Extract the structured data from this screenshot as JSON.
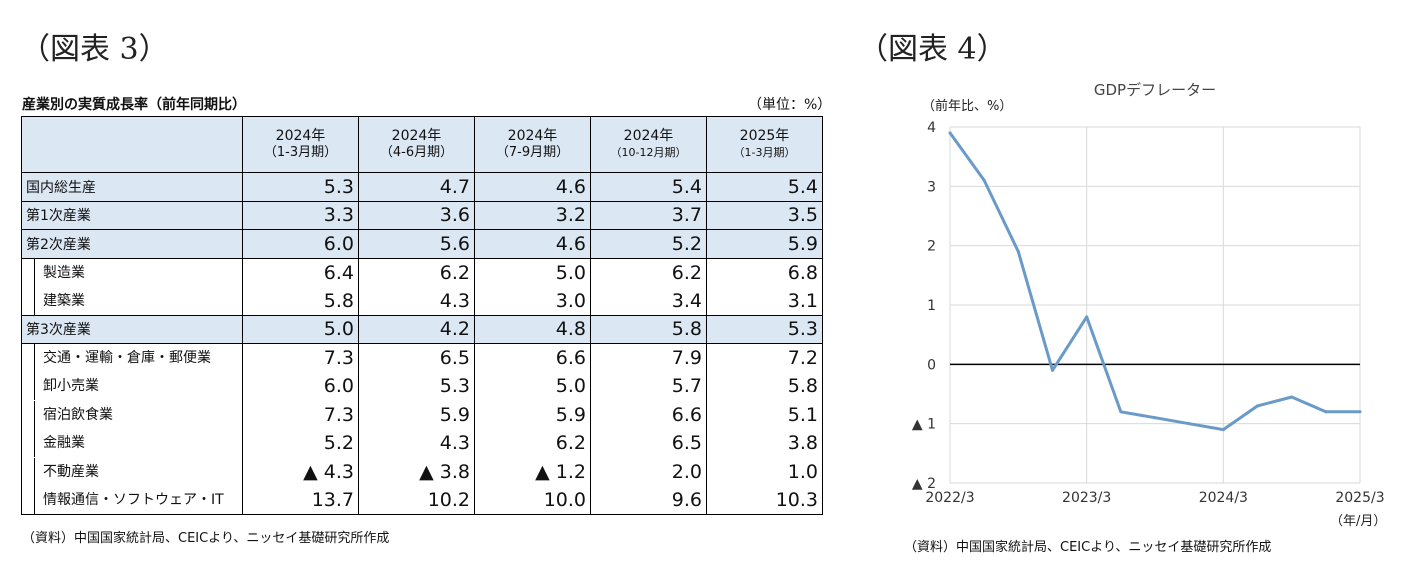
{
  "figure3": {
    "title": "（図表 3）",
    "caption": "産業別の実質成長率（前年同期比）",
    "unit": "（単位：%）",
    "columns": [
      {
        "year": "2024年",
        "period": "（1-3月期）"
      },
      {
        "year": "2024年",
        "period": "（4-6月期）"
      },
      {
        "year": "2024年",
        "period": "（7-9月期）"
      },
      {
        "year": "2024年",
        "period": "（10-12月期）"
      },
      {
        "year": "2025年",
        "period": "（1-3月期）"
      }
    ],
    "rows": [
      {
        "label": "国内総生産",
        "level": "major",
        "values": [
          "5.3",
          "4.7",
          "4.6",
          "5.4",
          "5.4"
        ]
      },
      {
        "label": "第1次産業",
        "level": "major",
        "values": [
          "3.3",
          "3.6",
          "3.2",
          "3.7",
          "3.5"
        ]
      },
      {
        "label": "第2次産業",
        "level": "major",
        "values": [
          "6.0",
          "5.6",
          "4.6",
          "5.2",
          "5.9"
        ]
      },
      {
        "label": "製造業",
        "level": "minor",
        "values": [
          "6.4",
          "6.2",
          "5.0",
          "6.2",
          "6.8"
        ]
      },
      {
        "label": "建築業",
        "level": "minor",
        "values": [
          "5.8",
          "4.3",
          "3.0",
          "3.4",
          "3.1"
        ]
      },
      {
        "label": "第3次産業",
        "level": "major",
        "values": [
          "5.0",
          "4.2",
          "4.8",
          "5.8",
          "5.3"
        ]
      },
      {
        "label": "交通・運輸・倉庫・郵便業",
        "level": "minor",
        "values": [
          "7.3",
          "6.5",
          "6.6",
          "7.9",
          "7.2"
        ]
      },
      {
        "label": "卸小売業",
        "level": "minor",
        "values": [
          "6.0",
          "5.3",
          "5.0",
          "5.7",
          "5.8"
        ]
      },
      {
        "label": "宿泊飲食業",
        "level": "minor",
        "values": [
          "7.3",
          "5.9",
          "5.9",
          "6.6",
          "5.1"
        ]
      },
      {
        "label": "金融業",
        "level": "minor",
        "values": [
          "5.2",
          "4.3",
          "6.2",
          "6.5",
          "3.8"
        ]
      },
      {
        "label": "不動産業",
        "level": "minor",
        "values": [
          "▲ 4.3",
          "▲ 3.8",
          "▲ 1.2",
          "2.0",
          "1.0"
        ]
      },
      {
        "label": "情報通信・ソフトウェア・IT",
        "level": "minor",
        "values": [
          "13.7",
          "10.2",
          "10.0",
          "9.6",
          "10.3"
        ]
      }
    ],
    "source": "（資料）中国国家統計局、CEICより、ニッセイ基礎研究所作成"
  },
  "figure4": {
    "title": "（図表 4）",
    "source": "（資料）中国国家統計局、CEICより、ニッセイ基礎研究所作成"
  },
  "chart_data": {
    "type": "line",
    "title": "GDPデフレーター",
    "ylabel": "（前年比、%）",
    "xlabel": "（年/月）",
    "ylim": [
      -2,
      4
    ],
    "yticks": [
      4,
      3,
      2,
      1,
      0,
      -1,
      -2
    ],
    "ytick_labels": [
      "4",
      "3",
      "2",
      "1",
      "0",
      "▲ 1",
      "▲ 2"
    ],
    "xtick_labels": [
      "2022/3",
      "2023/3",
      "2024/3",
      "2025/3"
    ],
    "grid": true,
    "series": [
      {
        "color": "#6a9ac8",
        "x": [
          "2022/3",
          "2022/6",
          "2022/9",
          "2022/12",
          "2023/3",
          "2023/6",
          "2023/9",
          "2023/12",
          "2024/3",
          "2024/6",
          "2024/9",
          "2024/12",
          "2025/3"
        ],
        "values": [
          3.9,
          3.1,
          1.9,
          -0.1,
          0.8,
          -0.8,
          -0.9,
          -1.0,
          -1.1,
          -0.7,
          -0.55,
          -0.8,
          -0.8
        ]
      }
    ],
    "zero_line_color": "#000000"
  }
}
